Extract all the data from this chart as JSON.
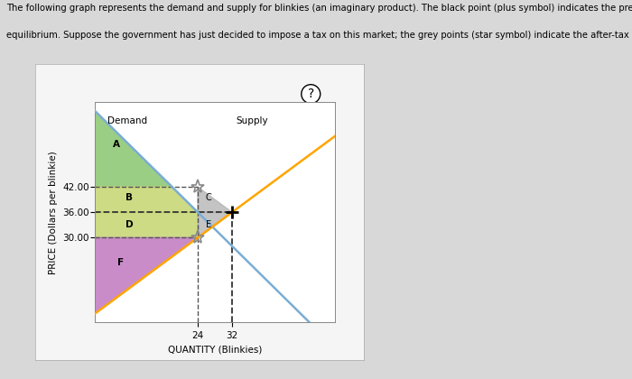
{
  "title_line1": "The following graph represents the demand and supply for blinkies (an imaginary product). The black point (plus symbol) indicates the pre-tax",
  "title_line2": "equilibrium. Suppose the government has just decided to impose a tax on this market; the grey points (star symbol) indicate the after-tax scenario.",
  "xlabel": "QUANTITY (Blinkies)",
  "ylabel": "PRICE (Dollars per blinkie)",
  "demand_label": "Demand",
  "supply_label": "Supply",
  "demand_color": "#7aadd4",
  "supply_color": "#FFA500",
  "eq_point": [
    32,
    36
  ],
  "after_tax_points": [
    [
      24,
      42
    ],
    [
      24,
      30
    ]
  ],
  "price_ticks": [
    30.0,
    36.0,
    42.0
  ],
  "qty_ticks": [
    24,
    32
  ],
  "xlim": [
    0,
    56
  ],
  "ylim": [
    10,
    62
  ],
  "region_A_color": "#90c978",
  "region_B_color": "#c8d878",
  "region_D_color": "#c8d878",
  "region_F_color": "#c078c0",
  "region_C_color": "#b0b0b0",
  "region_E_color": "#b0b0b0",
  "fig_bg": "#d8d8d8",
  "chart_bg": "#f5f5f5",
  "plot_bg": "#ffffff",
  "demand_y_intercept": 60,
  "supply_y_intercept": 12,
  "supply_slope": 0.75
}
